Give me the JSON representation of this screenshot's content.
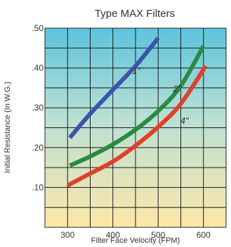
{
  "chart_data": {
    "type": "line",
    "title": "Type MAX Filters",
    "xlabel": "Filter Face Velocity (FPM)",
    "ylabel": "Initial Resistance (In W.G.)",
    "xlim": [
      250,
      650
    ],
    "ylim": [
      0,
      0.5
    ],
    "x_ticks": [
      300,
      400,
      500,
      600
    ],
    "x_tick_labels": [
      "300",
      "400",
      "500",
      "600"
    ],
    "y_ticks": [
      0.1,
      0.2,
      0.3,
      0.4,
      0.5
    ],
    "y_tick_labels": [
      ".10",
      ".20",
      ".30",
      ".40",
      ".50"
    ],
    "grid": true,
    "series": [
      {
        "name": "1″",
        "color": "#3b55a8",
        "x": [
          305,
          350,
          400,
          450,
          500
        ],
        "y": [
          0.225,
          0.285,
          0.345,
          0.405,
          0.475
        ]
      },
      {
        "name": "2″",
        "color": "#2a8a43",
        "x": [
          305,
          350,
          400,
          450,
          500,
          550,
          600
        ],
        "y": [
          0.155,
          0.178,
          0.208,
          0.245,
          0.292,
          0.355,
          0.455
        ]
      },
      {
        "name": "4″",
        "color": "#e0402b",
        "x": [
          300,
          350,
          400,
          450,
          500,
          550,
          605
        ],
        "y": [
          0.105,
          0.135,
          0.165,
          0.205,
          0.252,
          0.31,
          0.405
        ]
      }
    ]
  }
}
